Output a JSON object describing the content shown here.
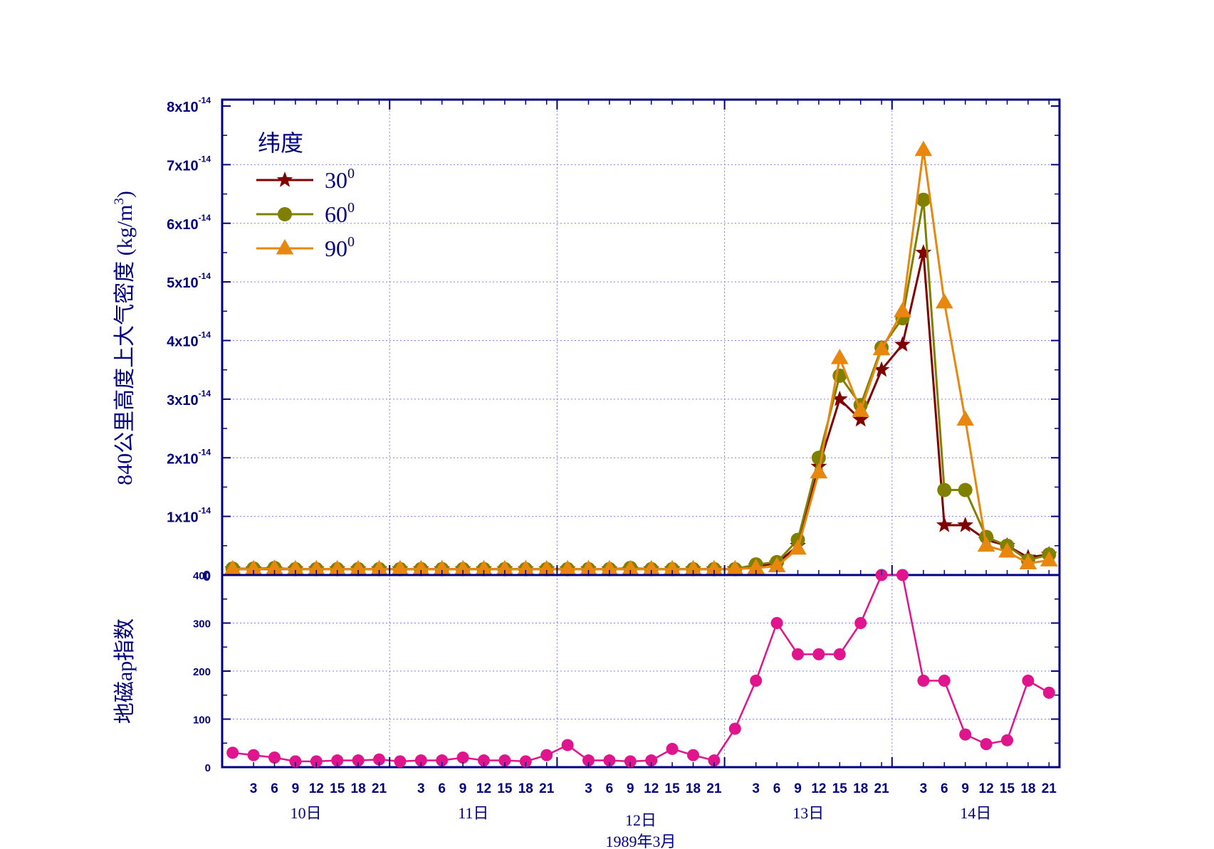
{
  "chart_data": [
    {
      "type": "line",
      "ylabel": "840公里高度上大气密度",
      "ylabel_unit_prefix": "(kg/",
      "ylabel_unit_base": "m",
      "ylabel_unit_exp": "3",
      "ylabel_unit_suffix": ")",
      "ylim": [
        0,
        8e-14
      ],
      "yticks": [
        {
          "value": 0,
          "base": "0",
          "exp": ""
        },
        {
          "value": 1e-14,
          "base": "1x10",
          "exp": "-14"
        },
        {
          "value": 2e-14,
          "base": "2x10",
          "exp": "-14"
        },
        {
          "value": 3e-14,
          "base": "3x10",
          "exp": "-14"
        },
        {
          "value": 4e-14,
          "base": "4x10",
          "exp": "-14"
        },
        {
          "value": 5e-14,
          "base": "5x10",
          "exp": "-14"
        },
        {
          "value": 6e-14,
          "base": "6x10",
          "exp": "-14"
        },
        {
          "value": 7e-14,
          "base": "7x10",
          "exp": "-14"
        },
        {
          "value": 8e-14,
          "base": "8x10",
          "exp": "-14"
        }
      ],
      "legend": {
        "title": "纬度",
        "placement": "top-left"
      },
      "grid": true,
      "series": [
        {
          "name": "30",
          "name_sup": "0",
          "color": "#800000",
          "marker": "star",
          "values": [
            1e-15,
            1e-15,
            1e-15,
            1e-15,
            1e-15,
            1e-15,
            1e-15,
            1e-15,
            1e-15,
            1e-15,
            1e-15,
            1e-15,
            1e-15,
            1e-15,
            1e-15,
            1e-15,
            1e-15,
            1e-15,
            1e-15,
            1e-15,
            1e-15,
            1e-15,
            1e-15,
            1e-15,
            1e-15,
            1.5e-15,
            2e-15,
            5e-15,
            1.85e-14,
            3e-14,
            2.65e-14,
            3.5e-14,
            3.93e-14,
            5.5e-14,
            8.5e-15,
            8.5e-15,
            6e-15,
            5e-15,
            3e-15,
            3.5e-15
          ]
        },
        {
          "name": "60",
          "name_sup": "0",
          "color": "#808000",
          "marker": "circle",
          "values": [
            1.1e-15,
            1.1e-15,
            1.2e-15,
            1e-15,
            1e-15,
            1e-15,
            1e-15,
            1e-15,
            1e-15,
            1e-15,
            1e-15,
            1e-15,
            1e-15,
            1e-15,
            1e-15,
            1e-15,
            1e-15,
            1e-15,
            1e-15,
            1.2e-15,
            1e-15,
            1e-15,
            1e-15,
            1e-15,
            1e-15,
            1.8e-15,
            2.2e-15,
            6e-15,
            2e-14,
            3.4e-14,
            2.9e-14,
            3.88e-14,
            4.38e-14,
            6.4e-14,
            1.45e-14,
            1.45e-14,
            6.5e-15,
            5e-15,
            2.5e-15,
            3.5e-15
          ]
        },
        {
          "name": "90",
          "name_sup": "0",
          "color": "#e8870e",
          "marker": "triangle",
          "values": [
            1e-15,
            1e-15,
            1.1e-15,
            1e-15,
            1e-15,
            1e-15,
            1e-15,
            1e-15,
            1e-15,
            1e-15,
            1e-15,
            1e-15,
            1e-15,
            1e-15,
            1e-15,
            1e-15,
            1e-15,
            1e-15,
            1e-15,
            1e-15,
            1e-15,
            1e-15,
            1e-15,
            1e-15,
            1e-15,
            1.2e-15,
            1.5e-15,
            4.5e-15,
            1.75e-14,
            3.7e-14,
            2.8e-14,
            3.85e-14,
            4.5e-14,
            7.25e-14,
            4.65e-14,
            2.65e-14,
            5e-15,
            4e-15,
            2e-15,
            2.5e-15
          ]
        }
      ]
    },
    {
      "type": "line",
      "ylabel": "地磁ap指数",
      "ylim": [
        0,
        400
      ],
      "yticks": [
        "0",
        "100",
        "200",
        "300",
        "400"
      ],
      "grid": true,
      "series": [
        {
          "color": "#e0148c",
          "marker": "circle",
          "values": [
            30,
            25,
            20,
            12,
            12,
            14,
            14,
            16,
            12,
            14,
            14,
            20,
            14,
            14,
            12,
            25,
            46,
            14,
            14,
            12,
            14,
            38,
            25,
            14,
            80,
            180,
            300,
            235,
            235,
            235,
            300,
            400,
            400,
            180,
            180,
            68,
            48,
            56,
            180,
            155
          ]
        }
      ]
    }
  ],
  "x_axis": {
    "hour_labels": [
      "3",
      "6",
      "9",
      "12",
      "15",
      "18",
      "21"
    ],
    "day_labels": [
      "10日",
      "11日",
      "12日",
      "13日",
      "14日"
    ],
    "xlabel": "1989年3月"
  },
  "colors": {
    "axis": "#000080",
    "grid": "#8080ff"
  }
}
